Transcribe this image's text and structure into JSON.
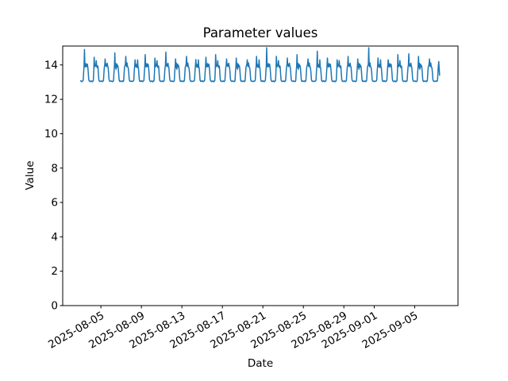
{
  "window": {
    "title": "Parameter values",
    "background_color": "#ffffff"
  },
  "chart_data": {
    "type": "line",
    "title": "Parameter values",
    "xlabel": "Date",
    "ylabel": "Value",
    "line_color": "#1f77b4",
    "axis_color": "#000000",
    "grid": "off",
    "legend": "none",
    "start_date": "2025-08-03",
    "points_per_day": 24,
    "x_unit": "hourly samples beginning at start_date 00:00",
    "xlim_days_from_start": [
      -1.775,
      37.275
    ],
    "ylim": [
      0,
      15.1
    ],
    "x_tick_rotation_deg": 30,
    "x_ticks": [
      {
        "label": "2025-08-05",
        "day": 2
      },
      {
        "label": "2025-08-09",
        "day": 6
      },
      {
        "label": "2025-08-13",
        "day": 10
      },
      {
        "label": "2025-08-17",
        "day": 14
      },
      {
        "label": "2025-08-21",
        "day": 18
      },
      {
        "label": "2025-08-25",
        "day": 22
      },
      {
        "label": "2025-08-29",
        "day": 26
      },
      {
        "label": "2025-09-01",
        "day": 29
      },
      {
        "label": "2025-09-05",
        "day": 33
      }
    ],
    "y_ticks": [
      0,
      2,
      4,
      6,
      8,
      10,
      12,
      14
    ],
    "days": [
      [
        13.08,
        13.05,
        13.03,
        13.06,
        13.04,
        13.07,
        13.12,
        13.55,
        13.92,
        14.9,
        14.02,
        13.88,
        13.96,
        14.08,
        13.9,
        13.98,
        14.04,
        13.86,
        13.55,
        13.18,
        13.08,
        13.05,
        13.03,
        13.06
      ],
      [
        13.05,
        13.07,
        13.04,
        13.02,
        13.06,
        13.05,
        13.1,
        13.6,
        14.45,
        14.05,
        13.9,
        13.95,
        14.0,
        14.25,
        13.92,
        13.85,
        13.95,
        13.9,
        13.5,
        13.15,
        13.07,
        13.04,
        13.06,
        13.05
      ],
      [
        13.06,
        13.04,
        13.07,
        13.05,
        13.03,
        13.06,
        13.09,
        13.5,
        13.85,
        13.98,
        14.35,
        13.95,
        14.05,
        13.9,
        14.0,
        14.1,
        13.92,
        13.88,
        13.58,
        13.2,
        13.09,
        13.06,
        13.04,
        13.05
      ],
      [
        13.07,
        13.05,
        13.06,
        13.03,
        13.05,
        13.04,
        13.11,
        13.58,
        13.9,
        14.7,
        13.85,
        14.1,
        13.75,
        13.95,
        14.05,
        13.88,
        13.96,
        13.84,
        13.52,
        13.16,
        13.06,
        13.04,
        13.07,
        13.05
      ],
      [
        13.04,
        13.06,
        13.05,
        13.07,
        13.03,
        13.05,
        13.1,
        13.52,
        13.88,
        13.95,
        14.05,
        14.5,
        13.98,
        13.9,
        14.12,
        13.94,
        13.87,
        13.8,
        13.55,
        13.17,
        13.07,
        13.05,
        13.06,
        13.04
      ],
      [
        13.06,
        13.05,
        13.04,
        13.06,
        13.05,
        13.07,
        13.13,
        13.62,
        13.94,
        14.3,
        13.96,
        13.88,
        14.02,
        13.92,
        13.85,
        14.3,
        13.9,
        13.82,
        13.48,
        13.14,
        13.05,
        13.06,
        13.04,
        13.07
      ],
      [
        13.08,
        13.05,
        13.03,
        13.06,
        13.04,
        13.07,
        13.12,
        13.55,
        13.92,
        14.6,
        14.02,
        13.88,
        13.96,
        14.08,
        13.9,
        13.98,
        14.04,
        13.86,
        13.55,
        13.18,
        13.08,
        13.05,
        13.03,
        13.06
      ],
      [
        13.05,
        13.07,
        13.04,
        13.02,
        13.06,
        13.05,
        13.1,
        13.6,
        14.4,
        14.05,
        13.9,
        13.95,
        14.0,
        14.25,
        13.92,
        13.85,
        13.95,
        13.9,
        13.5,
        13.15,
        13.07,
        13.04,
        13.06,
        13.05
      ],
      [
        13.06,
        13.04,
        13.07,
        13.05,
        13.03,
        13.06,
        13.09,
        13.5,
        13.85,
        13.98,
        14.75,
        13.95,
        14.05,
        13.9,
        14.0,
        14.1,
        13.92,
        13.88,
        13.58,
        13.2,
        13.09,
        13.06,
        13.04,
        13.05
      ],
      [
        13.07,
        13.05,
        13.06,
        13.03,
        13.05,
        13.04,
        13.11,
        13.58,
        13.9,
        14.35,
        13.85,
        14.1,
        13.75,
        13.95,
        14.05,
        13.88,
        13.96,
        13.84,
        13.52,
        13.16,
        13.06,
        13.04,
        13.07,
        13.05
      ],
      [
        13.04,
        13.06,
        13.05,
        13.07,
        13.03,
        13.05,
        13.1,
        13.52,
        13.88,
        13.95,
        14.05,
        14.5,
        13.98,
        13.9,
        14.12,
        13.94,
        13.87,
        13.8,
        13.55,
        13.17,
        13.07,
        13.05,
        13.06,
        13.04
      ],
      [
        13.06,
        13.05,
        13.04,
        13.06,
        13.05,
        13.07,
        13.13,
        13.62,
        13.94,
        14.32,
        13.96,
        13.88,
        14.02,
        13.92,
        13.85,
        14.3,
        13.9,
        13.82,
        13.48,
        13.14,
        13.05,
        13.06,
        13.04,
        13.07
      ],
      [
        13.08,
        13.05,
        13.03,
        13.06,
        13.04,
        13.07,
        13.12,
        13.55,
        13.92,
        14.45,
        14.02,
        13.88,
        13.96,
        14.08,
        13.9,
        13.98,
        14.04,
        13.86,
        13.55,
        13.18,
        13.08,
        13.05,
        13.03,
        13.06
      ],
      [
        13.05,
        13.07,
        13.04,
        13.02,
        13.06,
        13.05,
        13.1,
        13.6,
        14.6,
        14.05,
        13.9,
        13.95,
        14.0,
        14.25,
        13.92,
        13.85,
        13.95,
        13.9,
        13.5,
        13.15,
        13.07,
        13.04,
        13.06,
        13.05
      ],
      [
        13.06,
        13.04,
        13.07,
        13.05,
        13.03,
        13.06,
        13.09,
        13.5,
        13.85,
        13.98,
        14.35,
        13.95,
        14.05,
        13.9,
        14.0,
        14.1,
        13.92,
        13.88,
        13.58,
        13.2,
        13.09,
        13.06,
        13.04,
        13.05
      ],
      [
        13.07,
        13.05,
        13.06,
        13.03,
        13.05,
        13.04,
        13.11,
        13.58,
        13.9,
        14.4,
        13.85,
        14.1,
        13.75,
        13.95,
        14.05,
        13.88,
        13.96,
        13.84,
        13.52,
        13.16,
        13.06,
        13.04,
        13.07,
        13.05
      ],
      [
        13.04,
        13.06,
        13.05,
        13.07,
        13.03,
        13.05,
        13.1,
        13.52,
        13.88,
        13.95,
        14.05,
        14.3,
        13.98,
        13.9,
        14.12,
        13.94,
        13.87,
        13.8,
        13.55,
        13.17,
        13.07,
        13.05,
        13.06,
        13.04
      ],
      [
        13.06,
        13.05,
        13.04,
        13.06,
        13.05,
        13.07,
        13.13,
        13.62,
        13.94,
        14.5,
        13.96,
        13.88,
        14.02,
        13.92,
        13.85,
        14.3,
        13.9,
        13.82,
        13.48,
        13.14,
        13.05,
        13.06,
        13.04,
        13.07
      ],
      [
        13.08,
        13.05,
        13.03,
        13.06,
        13.04,
        13.07,
        13.12,
        13.55,
        13.92,
        15.0,
        14.02,
        13.88,
        13.96,
        14.08,
        13.9,
        13.98,
        14.04,
        13.86,
        13.55,
        13.18,
        13.08,
        13.05,
        13.03,
        13.06
      ],
      [
        13.05,
        13.07,
        13.04,
        13.02,
        13.06,
        13.05,
        13.1,
        13.6,
        14.5,
        14.05,
        13.9,
        13.95,
        14.0,
        14.25,
        13.92,
        13.85,
        13.95,
        13.9,
        13.5,
        13.15,
        13.07,
        13.04,
        13.06,
        13.05
      ],
      [
        13.06,
        13.04,
        13.07,
        13.05,
        13.03,
        13.06,
        13.09,
        13.5,
        13.85,
        13.98,
        14.4,
        13.95,
        14.05,
        13.9,
        14.0,
        14.1,
        13.92,
        13.88,
        13.58,
        13.2,
        13.09,
        13.06,
        13.04,
        13.05
      ],
      [
        13.07,
        13.05,
        13.06,
        13.03,
        13.05,
        13.04,
        13.11,
        13.58,
        13.9,
        14.6,
        13.85,
        14.1,
        13.75,
        13.95,
        14.05,
        13.88,
        13.96,
        13.84,
        13.52,
        13.16,
        13.06,
        13.04,
        13.07,
        13.05
      ],
      [
        13.04,
        13.06,
        13.05,
        13.07,
        13.03,
        13.05,
        13.1,
        13.52,
        13.88,
        13.95,
        14.05,
        14.35,
        13.98,
        13.9,
        14.12,
        13.94,
        13.87,
        13.8,
        13.55,
        13.17,
        13.07,
        13.05,
        13.06,
        13.04
      ],
      [
        13.06,
        13.05,
        13.04,
        13.06,
        13.05,
        13.07,
        13.13,
        13.62,
        13.94,
        14.8,
        13.96,
        13.88,
        14.02,
        13.92,
        13.85,
        14.3,
        13.9,
        13.82,
        13.48,
        13.14,
        13.05,
        13.06,
        13.04,
        13.07
      ],
      [
        13.08,
        13.05,
        13.03,
        13.06,
        13.04,
        13.07,
        13.12,
        13.55,
        13.92,
        14.4,
        14.02,
        13.88,
        13.96,
        14.08,
        13.9,
        13.98,
        14.04,
        13.86,
        13.55,
        13.18,
        13.08,
        13.05,
        13.03,
        13.06
      ],
      [
        13.05,
        13.07,
        13.04,
        13.02,
        13.06,
        13.05,
        13.1,
        13.6,
        14.3,
        14.05,
        13.9,
        13.95,
        14.0,
        14.25,
        13.92,
        13.85,
        13.95,
        13.9,
        13.5,
        13.15,
        13.07,
        13.04,
        13.06,
        13.05
      ],
      [
        13.06,
        13.04,
        13.07,
        13.05,
        13.03,
        13.06,
        13.09,
        13.5,
        13.85,
        13.98,
        14.5,
        13.95,
        14.05,
        13.9,
        14.0,
        14.1,
        13.92,
        13.88,
        13.58,
        13.2,
        13.09,
        13.06,
        13.04,
        13.05
      ],
      [
        13.07,
        13.05,
        13.06,
        13.03,
        13.05,
        13.04,
        13.11,
        13.58,
        13.9,
        14.35,
        13.85,
        14.1,
        13.75,
        13.95,
        14.05,
        13.88,
        13.96,
        13.84,
        13.52,
        13.16,
        13.06,
        13.04,
        13.07,
        13.05
      ],
      [
        13.04,
        13.06,
        13.05,
        13.07,
        13.03,
        13.05,
        13.1,
        13.52,
        13.88,
        13.95,
        14.05,
        15.0,
        13.98,
        13.9,
        14.12,
        13.94,
        13.87,
        13.8,
        13.55,
        13.17,
        13.07,
        13.05,
        13.06,
        13.04
      ],
      [
        13.06,
        13.05,
        13.04,
        13.06,
        13.05,
        13.07,
        13.13,
        13.62,
        13.94,
        14.4,
        13.96,
        13.88,
        14.02,
        13.92,
        13.85,
        14.3,
        13.9,
        13.82,
        13.48,
        13.14,
        13.05,
        13.06,
        13.04,
        13.07
      ],
      [
        13.08,
        13.05,
        13.03,
        13.06,
        13.04,
        13.07,
        13.12,
        13.55,
        13.92,
        14.3,
        14.02,
        13.88,
        13.96,
        14.08,
        13.9,
        13.98,
        14.04,
        13.86,
        13.55,
        13.18,
        13.08,
        13.05,
        13.03,
        13.06
      ],
      [
        13.05,
        13.07,
        13.04,
        13.02,
        13.06,
        13.05,
        13.1,
        13.6,
        14.6,
        14.05,
        13.9,
        13.95,
        14.0,
        14.25,
        13.92,
        13.85,
        13.95,
        13.9,
        13.5,
        13.15,
        13.07,
        13.04,
        13.06,
        13.05
      ],
      [
        13.06,
        13.04,
        13.07,
        13.05,
        13.03,
        13.06,
        13.09,
        13.5,
        13.85,
        13.98,
        14.65,
        13.95,
        14.05,
        13.9,
        14.0,
        14.1,
        13.92,
        13.88,
        13.58,
        13.2,
        13.09,
        13.06,
        13.04,
        13.05
      ],
      [
        13.07,
        13.05,
        13.06,
        13.03,
        13.05,
        13.04,
        13.11,
        13.58,
        13.9,
        14.5,
        13.85,
        14.1,
        13.75,
        13.95,
        14.05,
        13.88,
        13.96,
        13.84,
        13.52,
        13.16,
        13.06,
        13.04,
        13.07,
        13.05
      ],
      [
        13.04,
        13.06,
        13.05,
        13.07,
        13.03,
        13.05,
        13.1,
        13.52,
        13.88,
        13.95,
        14.05,
        14.35,
        13.98,
        13.9,
        14.12,
        13.94,
        13.87,
        13.8,
        13.55,
        13.17,
        13.07,
        13.05,
        13.06,
        13.04
      ],
      [
        13.06,
        13.05,
        13.04,
        13.07,
        13.05,
        13.06,
        13.1,
        13.5,
        13.95,
        14.2,
        13.8,
        13.4
      ]
    ]
  }
}
